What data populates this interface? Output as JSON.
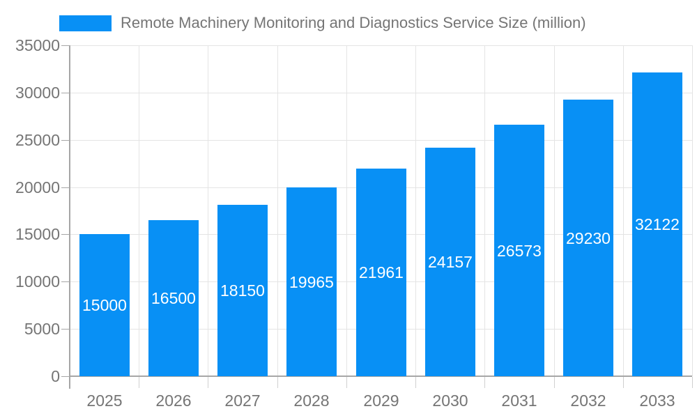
{
  "chart_data": {
    "type": "bar",
    "title": "Remote Machinery Monitoring and Diagnostics Service Size (million)",
    "legend_entries": [
      {
        "label": "Remote Machinery Monitoring and Diagnostics Service Size (million)",
        "color": "#0890F5"
      }
    ],
    "legend_position": "top-left",
    "categories": [
      "2025",
      "2026",
      "2027",
      "2028",
      "2029",
      "2030",
      "2031",
      "2032",
      "2033"
    ],
    "values": [
      15000,
      16500,
      18150,
      19965,
      21961,
      24157,
      26573,
      29230,
      32122
    ],
    "bar_labels": [
      "15000",
      "16500",
      "18150",
      "19965",
      "21961",
      "24157",
      "26573",
      "29230",
      "32122"
    ],
    "xlabel": "",
    "ylabel": "",
    "ylim": [
      0,
      35000
    ],
    "yticks": [
      0,
      5000,
      10000,
      15000,
      20000,
      25000,
      30000,
      35000
    ],
    "ytick_labels": [
      "0",
      "5000",
      "10000",
      "15000",
      "20000",
      "25000",
      "30000",
      "35000"
    ],
    "grid": true,
    "colors": {
      "bar": "#0890F5",
      "axis_text": "#757575",
      "bar_label_text": "#FFFFFF",
      "gridline": "#E4E4E4",
      "minor_tick": "#D0D0D0",
      "axis_line": "#A6A6A6",
      "background": "#FFFFFF"
    }
  }
}
